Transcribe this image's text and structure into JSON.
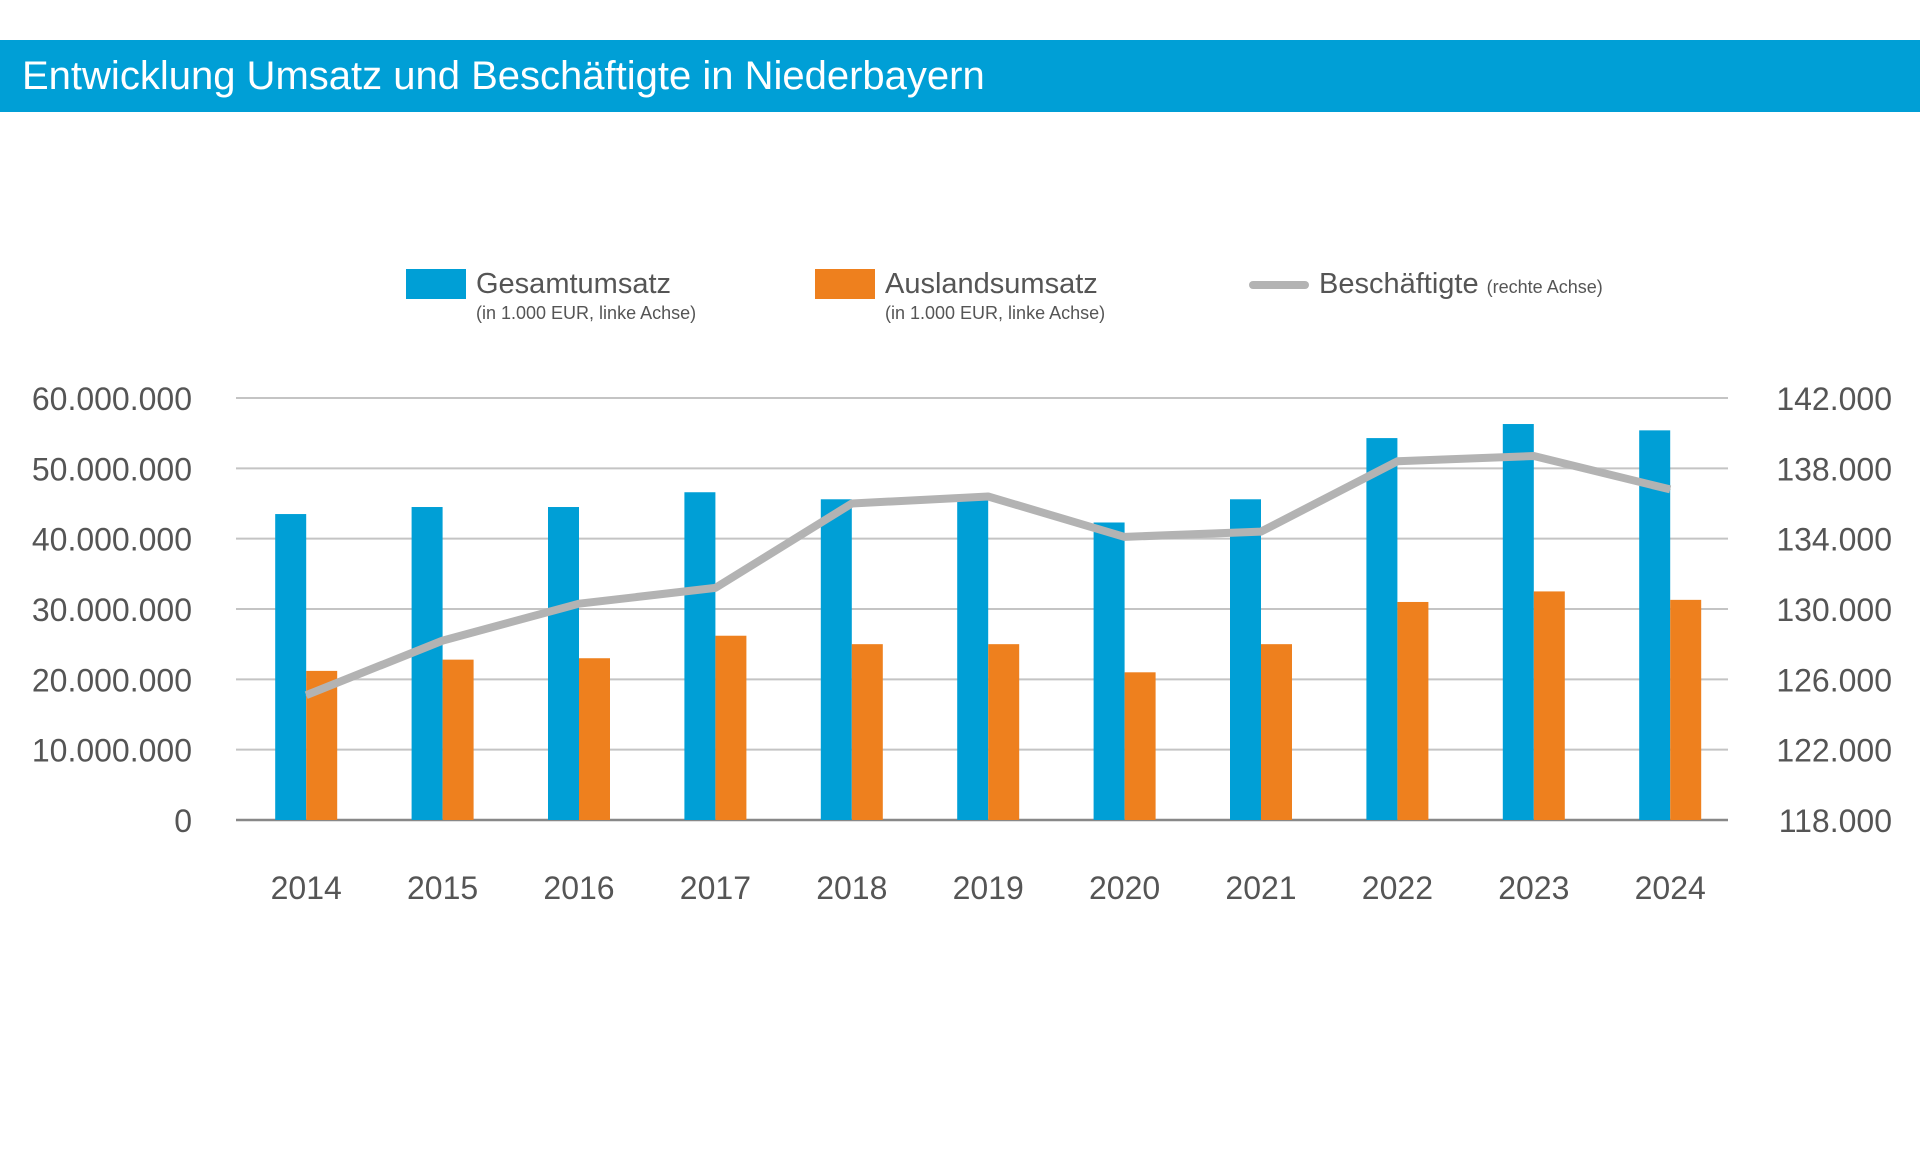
{
  "title": "Entwicklung Umsatz und Beschäftigte in Niederbayern",
  "legend": {
    "gesamt_label": "Gesamtumsatz",
    "gesamt_note": "(in 1.000 EUR, linke Achse)",
    "ausland_label": "Auslandsumsatz",
    "ausland_note": "(in 1.000 EUR, linke Achse)",
    "beschaeftigte_label": "Beschäftigte",
    "beschaeftigte_note": "(rechte Achse)"
  },
  "colors": {
    "gesamt": "#009fd6",
    "ausland": "#ee801e",
    "beschaeftigte": "#b3b3b3",
    "grid": "#c4c4c4",
    "axis": "#888888"
  },
  "chart_data": {
    "type": "bar",
    "categories": [
      "2014",
      "2015",
      "2016",
      "2017",
      "2018",
      "2019",
      "2020",
      "2021",
      "2022",
      "2023",
      "2024"
    ],
    "series": [
      {
        "name": "Gesamtumsatz",
        "type": "bar",
        "axis": "left",
        "values": [
          43500000,
          44500000,
          44500000,
          46600000,
          45600000,
          45600000,
          42300000,
          45600000,
          54300000,
          56300000,
          55400000
        ]
      },
      {
        "name": "Auslandsumsatz",
        "type": "bar",
        "axis": "left",
        "values": [
          21200000,
          22800000,
          23000000,
          26200000,
          25000000,
          25000000,
          21000000,
          25000000,
          31000000,
          32500000,
          31300000
        ]
      },
      {
        "name": "Beschäftigte",
        "type": "line",
        "axis": "right",
        "values": [
          125100,
          128200,
          130300,
          131200,
          136000,
          136400,
          134100,
          134400,
          138400,
          138700,
          136800
        ]
      }
    ],
    "y_left": {
      "min": 0,
      "max": 60000000,
      "ticks": [
        0,
        10000000,
        20000000,
        30000000,
        40000000,
        50000000,
        60000000
      ],
      "tick_labels": [
        "0",
        "10.000.000",
        "20.000.000",
        "30.000.000",
        "40.000.000",
        "50.000.000",
        "60.000.000"
      ]
    },
    "y_right": {
      "min": 118000,
      "max": 142000,
      "ticks": [
        118000,
        122000,
        126000,
        130000,
        134000,
        138000,
        142000
      ],
      "tick_labels": [
        "118.000",
        "122.000",
        "126.000",
        "130.000",
        "134.000",
        "138.000",
        "142.000"
      ]
    },
    "grid": true,
    "legend_position": "top"
  }
}
